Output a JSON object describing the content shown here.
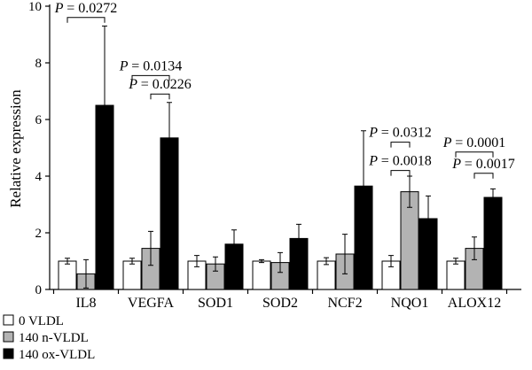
{
  "chart_data": {
    "type": "bar",
    "ylabel": "Relative expression",
    "xlabel": "",
    "ylim": [
      0,
      10
    ],
    "yticks": [
      0,
      2,
      4,
      6,
      8,
      10
    ],
    "legend_position": "bottom-left",
    "categories": [
      "IL8",
      "VEGFA",
      "SOD1",
      "SOD2",
      "NCF2",
      "NQO1",
      "ALOX12"
    ],
    "series": [
      {
        "name": "0 VLDL",
        "color": "#ffffff",
        "values": [
          1.0,
          1.0,
          1.0,
          1.0,
          1.0,
          1.0,
          1.0
        ],
        "errors": [
          0.1,
          0.1,
          0.2,
          0.05,
          0.12,
          0.2,
          0.1
        ]
      },
      {
        "name": "140 n-VLDL",
        "color": "#b3b3b3",
        "values": [
          0.55,
          1.45,
          0.9,
          0.95,
          1.25,
          3.45,
          1.45
        ],
        "errors": [
          0.5,
          0.6,
          0.25,
          0.35,
          0.7,
          0.55,
          0.4
        ]
      },
      {
        "name": "140 ox-VLDL",
        "color": "#000000",
        "values": [
          6.5,
          5.35,
          1.6,
          1.8,
          3.65,
          2.5,
          3.25
        ],
        "errors": [
          2.8,
          1.25,
          0.5,
          0.5,
          1.95,
          0.8,
          0.3
        ]
      }
    ],
    "annotations": [
      {
        "text": "= 0.0272",
        "from": 0,
        "to": 2,
        "category": 0,
        "y": 9.6
      },
      {
        "text": "= 0.0134",
        "from": 0,
        "to": 2,
        "category": 1,
        "y": 7.55
      },
      {
        "text": "= 0.0226",
        "from": 1,
        "to": 2,
        "category": 1,
        "y": 6.9
      },
      {
        "text": "= 0.0312",
        "from": 0,
        "to": 1,
        "category": 5,
        "y": 5.2
      },
      {
        "text": "= 0.0018",
        "from": 0,
        "to": 1,
        "category": 5,
        "y": 4.2
      },
      {
        "text": "= 0.0001",
        "from": 0,
        "to": 2,
        "category": 6,
        "y": 4.85
      },
      {
        "text": "= 0.0017",
        "from": 1,
        "to": 2,
        "category": 6,
        "y": 4.1
      }
    ],
    "p_symbol": "P"
  }
}
